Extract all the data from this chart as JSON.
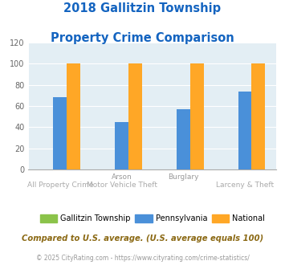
{
  "title_line1": "2018 Gallitzin Township",
  "title_line2": "Property Crime Comparison",
  "title_color": "#1464C0",
  "gallitzin_values": [
    0,
    0,
    0,
    0
  ],
  "pennsylvania_values": [
    68,
    45,
    57,
    74
  ],
  "national_values": [
    100,
    100,
    100,
    100
  ],
  "gallitzin_color": "#8BC34A",
  "pennsylvania_color": "#4A90D9",
  "national_color": "#FFA726",
  "bg_color": "#E3EEF4",
  "ylim": [
    0,
    120
  ],
  "yticks": [
    0,
    20,
    40,
    60,
    80,
    100,
    120
  ],
  "top_labels": [
    "",
    "Arson",
    "Burglary",
    ""
  ],
  "bot_labels": [
    "All Property Crime",
    "Motor Vehicle Theft",
    "",
    "Larceny & Theft"
  ],
  "top_label_color": "#999999",
  "bot_label_color": "#aaaaaa",
  "legend_labels": [
    "Gallitzin Township",
    "Pennsylvania",
    "National"
  ],
  "footer_text1": "Compared to U.S. average. (U.S. average equals 100)",
  "footer_text2": "© 2025 CityRating.com - https://www.cityrating.com/crime-statistics/",
  "footer_color1": "#8B6914",
  "footer_color2": "#999999",
  "bar_width": 0.22
}
